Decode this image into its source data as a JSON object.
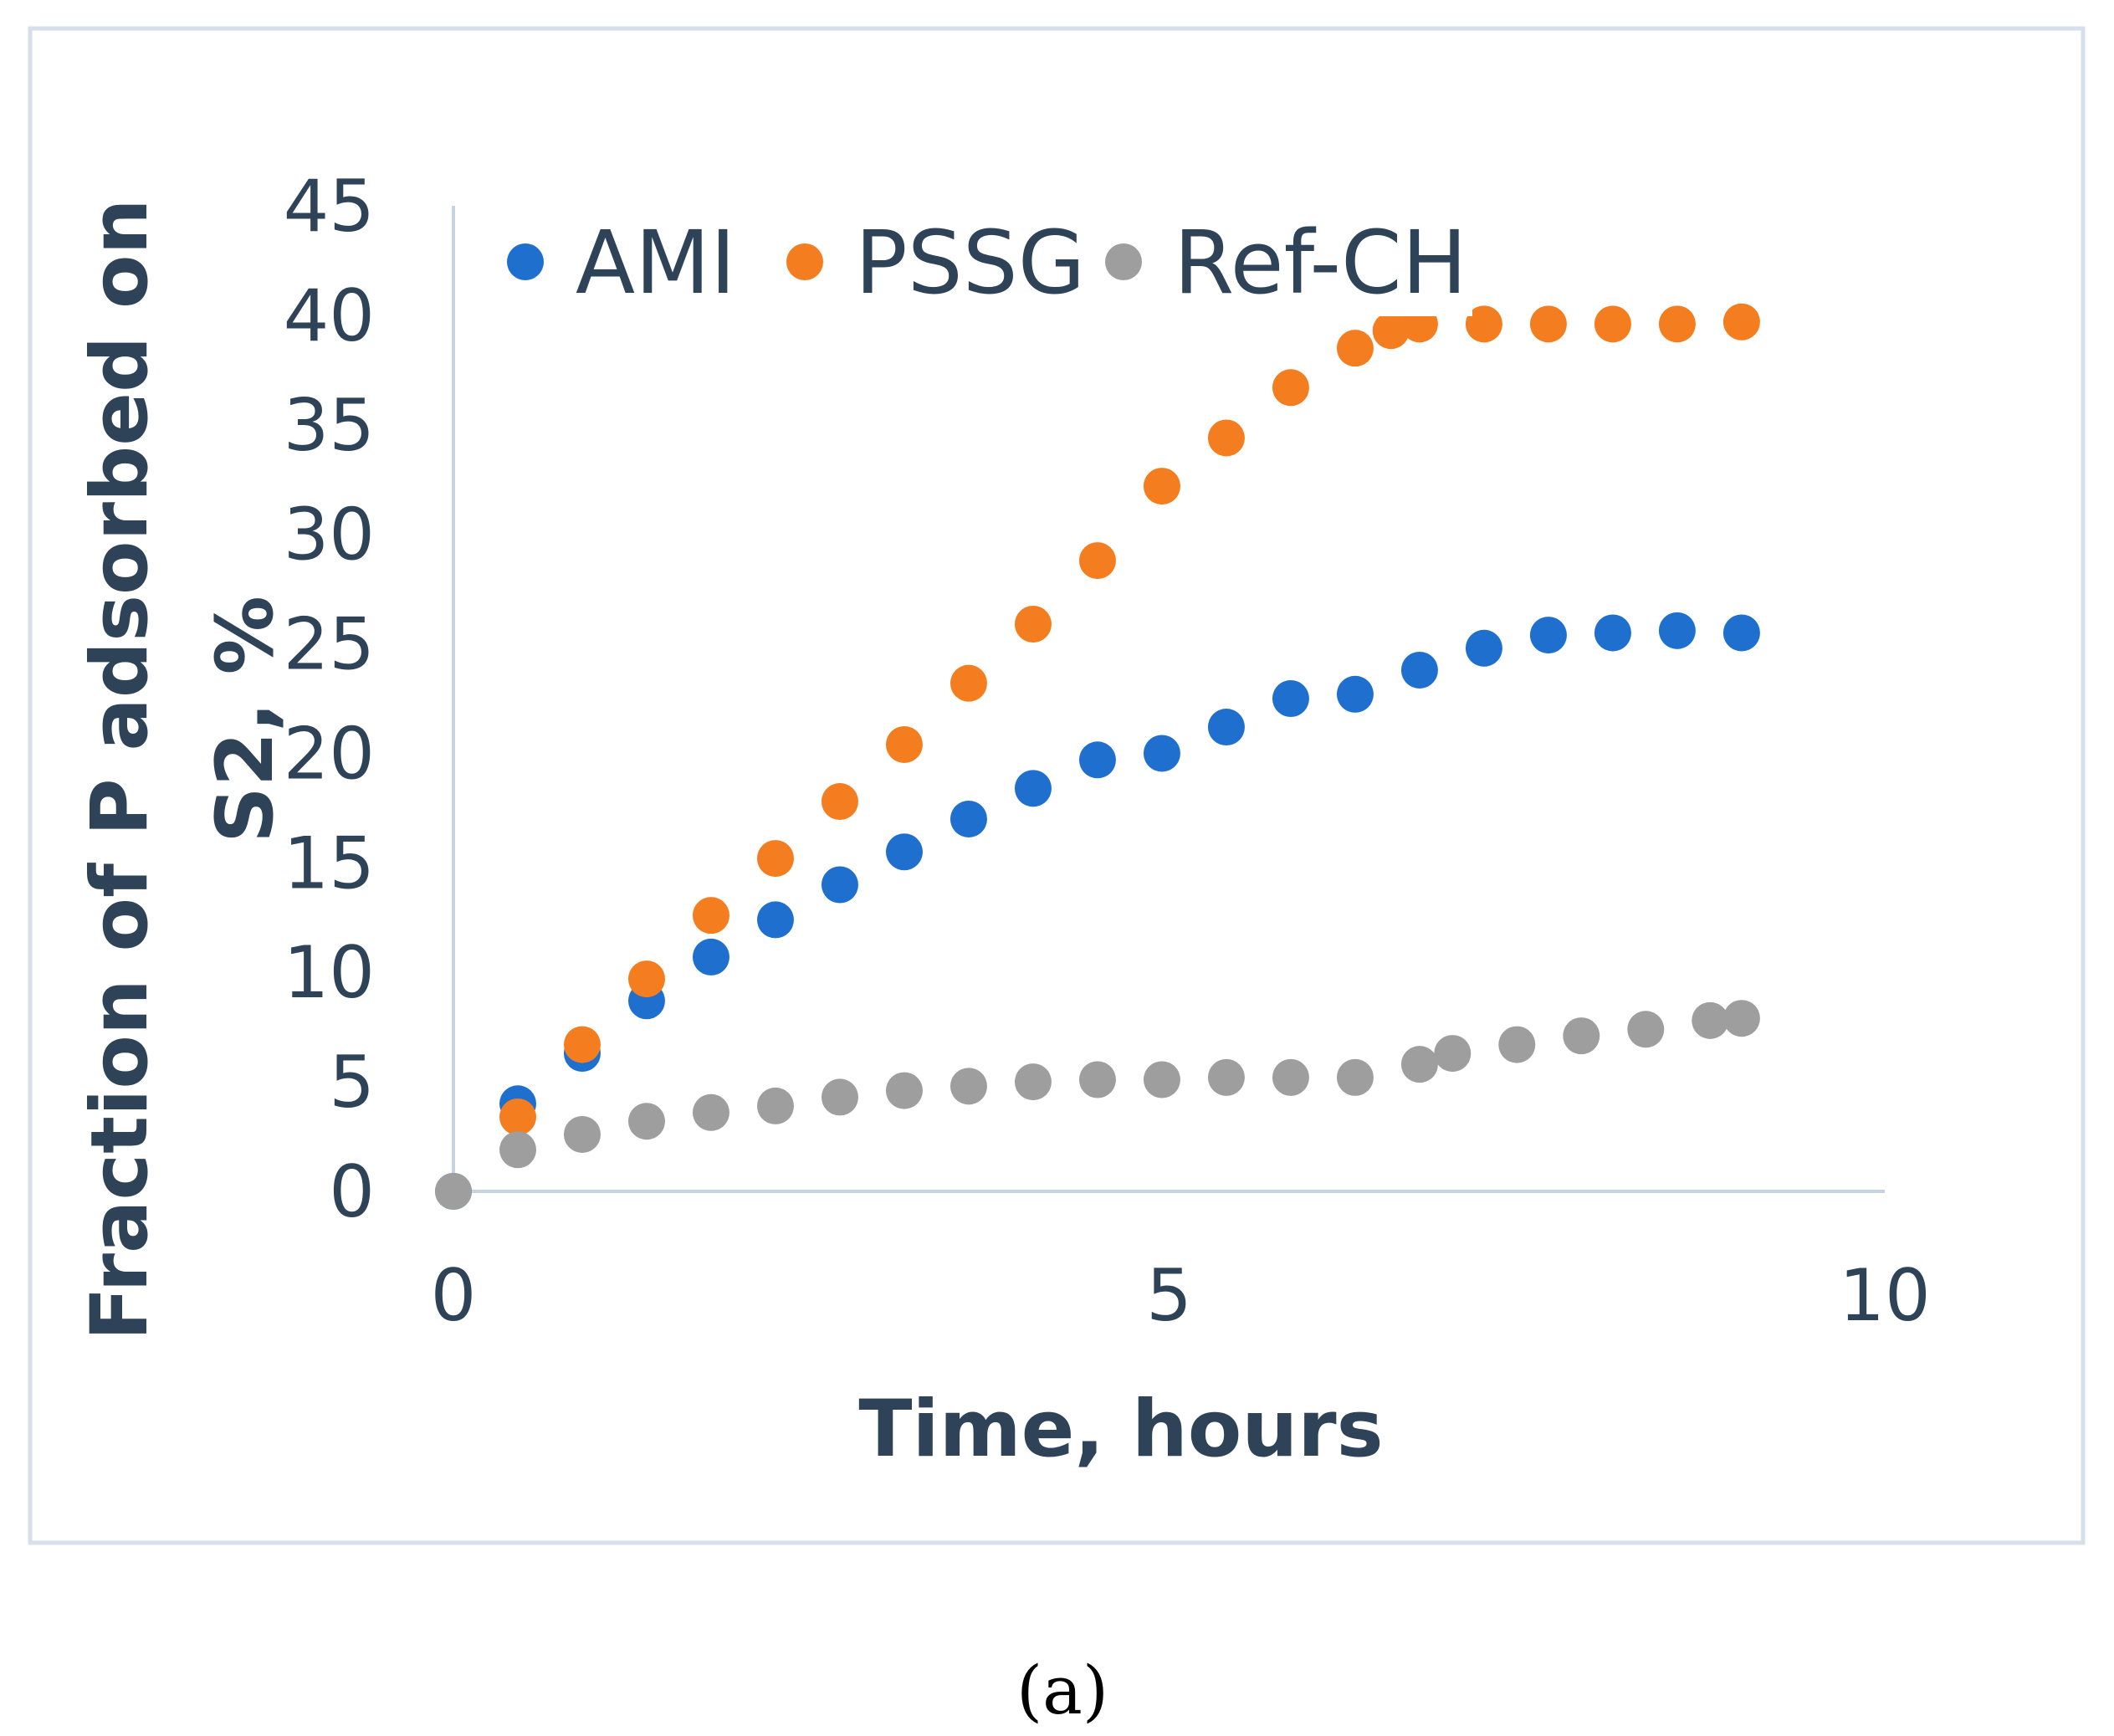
{
  "chart_data": {
    "type": "scatter",
    "title": "",
    "xlabel": "Time, hours",
    "ylabel_line1": "Fraction of P adsorbed on",
    "ylabel_line2": "S2, %",
    "xlim": [
      0,
      10
    ],
    "ylim": [
      0,
      45
    ],
    "x_ticks": [
      0,
      5,
      10
    ],
    "y_ticks": [
      0,
      5,
      10,
      15,
      20,
      25,
      30,
      35,
      40,
      45
    ],
    "grid": false,
    "legend_position": "top-left",
    "series": [
      {
        "name": "AMI",
        "color": "#1f6fcf",
        "points": [
          [
            0,
            0
          ],
          [
            0.45,
            4.0
          ],
          [
            0.9,
            6.3
          ],
          [
            1.35,
            8.7
          ],
          [
            1.8,
            10.7
          ],
          [
            2.25,
            12.4
          ],
          [
            2.7,
            14.0
          ],
          [
            3.15,
            15.5
          ],
          [
            3.6,
            17.0
          ],
          [
            4.05,
            18.4
          ],
          [
            4.5,
            19.7
          ],
          [
            4.95,
            20.0
          ],
          [
            5.4,
            21.2
          ],
          [
            5.85,
            22.5
          ],
          [
            6.3,
            22.7
          ],
          [
            6.75,
            23.8
          ],
          [
            7.2,
            24.8
          ],
          [
            7.65,
            25.4
          ],
          [
            8.1,
            25.5
          ],
          [
            8.55,
            25.6
          ],
          [
            9.0,
            25.5
          ]
        ]
      },
      {
        "name": "PSSG",
        "color": "#f47e1f",
        "points": [
          [
            0.45,
            3.4
          ],
          [
            0.9,
            6.7
          ],
          [
            1.35,
            9.7
          ],
          [
            1.8,
            12.6
          ],
          [
            2.25,
            15.2
          ],
          [
            2.7,
            17.8
          ],
          [
            3.15,
            20.4
          ],
          [
            3.6,
            23.2
          ],
          [
            4.05,
            25.9
          ],
          [
            4.5,
            28.8
          ],
          [
            4.95,
            32.2
          ],
          [
            5.4,
            34.4
          ],
          [
            5.85,
            36.7
          ],
          [
            6.3,
            38.5
          ],
          [
            6.55,
            39.3
          ],
          [
            6.75,
            39.6
          ],
          [
            7.2,
            39.6
          ],
          [
            7.65,
            39.6
          ],
          [
            8.1,
            39.6
          ],
          [
            8.55,
            39.6
          ],
          [
            9.0,
            39.7
          ]
        ]
      },
      {
        "name": "Ref-CH",
        "color": "#9e9e9e",
        "points": [
          [
            0,
            0
          ],
          [
            0.45,
            1.9
          ],
          [
            0.9,
            2.6
          ],
          [
            1.35,
            3.2
          ],
          [
            1.8,
            3.6
          ],
          [
            2.25,
            3.9
          ],
          [
            2.7,
            4.3
          ],
          [
            3.15,
            4.6
          ],
          [
            3.6,
            4.8
          ],
          [
            4.05,
            5.0
          ],
          [
            4.5,
            5.1
          ],
          [
            4.95,
            5.1
          ],
          [
            5.4,
            5.2
          ],
          [
            5.85,
            5.2
          ],
          [
            6.3,
            5.2
          ],
          [
            6.75,
            5.8
          ],
          [
            6.98,
            6.3
          ],
          [
            7.43,
            6.7
          ],
          [
            7.88,
            7.1
          ],
          [
            8.33,
            7.4
          ],
          [
            8.78,
            7.8
          ],
          [
            9.0,
            7.9
          ]
        ]
      }
    ]
  },
  "caption": "(a)"
}
